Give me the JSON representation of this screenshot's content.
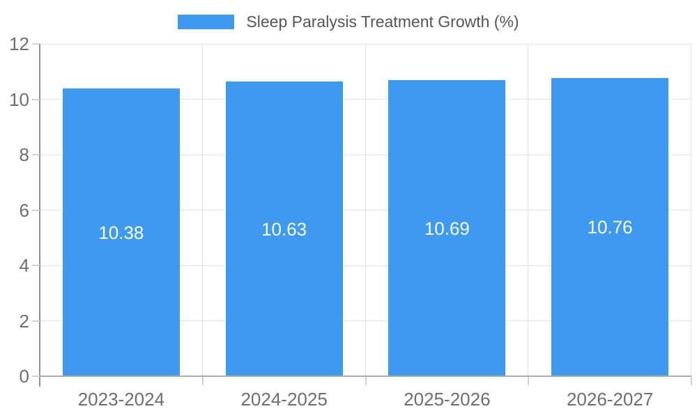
{
  "chart_data": {
    "type": "bar",
    "legend_label": "Sleep Paralysis Treatment Growth (%)",
    "legend_position": "top-center",
    "categories": [
      "2023-2024",
      "2024-2025",
      "2025-2026",
      "2026-2027"
    ],
    "values": [
      10.38,
      10.63,
      10.69,
      10.76
    ],
    "value_labels": [
      "10.38",
      "10.63",
      "10.69",
      "10.76"
    ],
    "xlabel": "",
    "ylabel": "",
    "ylim": [
      0,
      12
    ],
    "yticks": [
      0,
      2,
      4,
      6,
      8,
      10,
      12
    ],
    "grid": true,
    "bar_color": "#3D9AEF"
  },
  "colors": {
    "bar": "#3D9AEF",
    "gridline": "#E2E2E2",
    "y_axis_line": "#8F8F8F",
    "x_axis_line": "#ABABAB",
    "tick_mark": "#D2D2D2",
    "tick_text": "#6E6E6E",
    "legend_text": "#565656",
    "value_label_text": "#FFFFFF",
    "background": "#FFFFFF"
  }
}
